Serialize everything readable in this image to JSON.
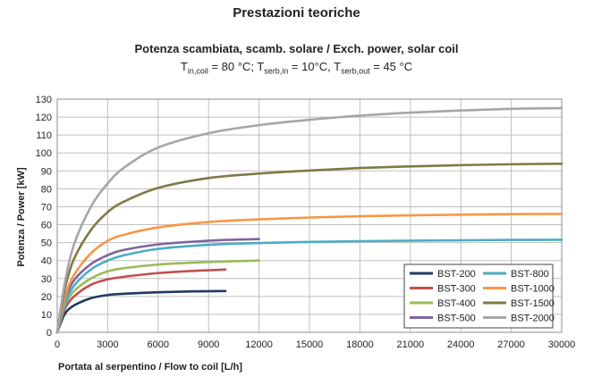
{
  "page_heading": "Prestazioni teoriche",
  "chart_data": {
    "type": "line",
    "title": "Potenza scambiata, scamb. solare / Exch. power, solar coil",
    "subtitle": {
      "t1": "T",
      "t1_sub": "in,coil",
      "t1_rest": " = 80 °C; ",
      "t2": "T",
      "t2_sub": "serb,in",
      "t2_rest": " = 10°C, ",
      "t3": "T",
      "t3_sub": "serb,out",
      "t3_rest": " = 45 °C"
    },
    "xlabel": "Portata al serpentino / Flow to coil [L/h]",
    "ylabel": "Potenza / Power [kW]",
    "xlim": [
      0,
      30000
    ],
    "ylim": [
      0,
      130
    ],
    "xticks": [
      0,
      3000,
      6000,
      9000,
      12000,
      15000,
      18000,
      21000,
      24000,
      27000,
      30000
    ],
    "yticks": [
      0,
      10,
      20,
      30,
      40,
      50,
      60,
      70,
      80,
      90,
      100,
      110,
      120,
      130
    ],
    "grid": true,
    "legend_position": "bottom-right",
    "series": [
      {
        "name": "BST-200",
        "color": "#1f3a5f",
        "x": [
          0,
          200,
          500,
          1000,
          2000,
          3000,
          4000,
          6000,
          8000,
          10000
        ],
        "y": [
          0,
          5,
          11,
          15,
          19,
          20.8,
          21.5,
          22.3,
          22.8,
          23
        ]
      },
      {
        "name": "BST-300",
        "color": "#c0504d",
        "x": [
          0,
          200,
          500,
          1000,
          2000,
          3000,
          4000,
          6000,
          8000,
          10000
        ],
        "y": [
          0,
          6,
          14,
          20,
          26.5,
          29.5,
          31,
          33,
          34.2,
          35
        ]
      },
      {
        "name": "BST-400",
        "color": "#9bbb59",
        "x": [
          0,
          200,
          500,
          1000,
          2000,
          3000,
          4000,
          6000,
          8000,
          10000,
          12000
        ],
        "y": [
          0,
          7,
          16,
          23,
          30,
          34,
          35.8,
          37.8,
          38.8,
          39.5,
          40
        ]
      },
      {
        "name": "BST-500",
        "color": "#8064a2",
        "x": [
          0,
          200,
          500,
          1000,
          2000,
          3000,
          4000,
          6000,
          8000,
          10000,
          12000
        ],
        "y": [
          0,
          8,
          19,
          29,
          38,
          43,
          46,
          49,
          50.5,
          51.5,
          52
        ]
      },
      {
        "name": "BST-800",
        "color": "#4bacc6",
        "x": [
          0,
          200,
          500,
          1000,
          2000,
          3000,
          4000,
          6000,
          9000,
          12000,
          15000,
          18000,
          21000,
          24000,
          27000,
          30000
        ],
        "y": [
          0,
          7,
          17,
          26,
          35,
          40,
          43,
          46.5,
          48.8,
          49.8,
          50.4,
          50.8,
          51.1,
          51.3,
          51.5,
          51.6
        ]
      },
      {
        "name": "BST-1000",
        "color": "#f79646",
        "x": [
          0,
          200,
          500,
          1000,
          2000,
          3000,
          4000,
          6000,
          9000,
          12000,
          15000,
          18000,
          21000,
          24000,
          27000,
          30000
        ],
        "y": [
          0,
          9,
          21,
          32,
          44,
          51,
          54.5,
          58.5,
          61.5,
          63,
          64,
          64.7,
          65.2,
          65.6,
          65.9,
          66
        ]
      },
      {
        "name": "BST-1500",
        "color": "#7f7a45",
        "x": [
          0,
          200,
          500,
          1000,
          2000,
          3000,
          4000,
          6000,
          9000,
          12000,
          15000,
          18000,
          21000,
          24000,
          27000,
          30000
        ],
        "y": [
          0,
          11,
          26,
          41,
          57,
          67,
          73,
          80.5,
          86,
          88.5,
          90.2,
          91.6,
          92.5,
          93.2,
          93.7,
          94
        ]
      },
      {
        "name": "BST-2000",
        "color": "#a6a6a6",
        "x": [
          0,
          200,
          500,
          1000,
          2000,
          3000,
          4000,
          6000,
          9000,
          12000,
          15000,
          18000,
          21000,
          24000,
          27000,
          30000
        ],
        "y": [
          0,
          13,
          30,
          49,
          70,
          83,
          92,
          103,
          111,
          115.5,
          118.5,
          120.8,
          122.5,
          123.7,
          124.6,
          125
        ]
      }
    ]
  }
}
